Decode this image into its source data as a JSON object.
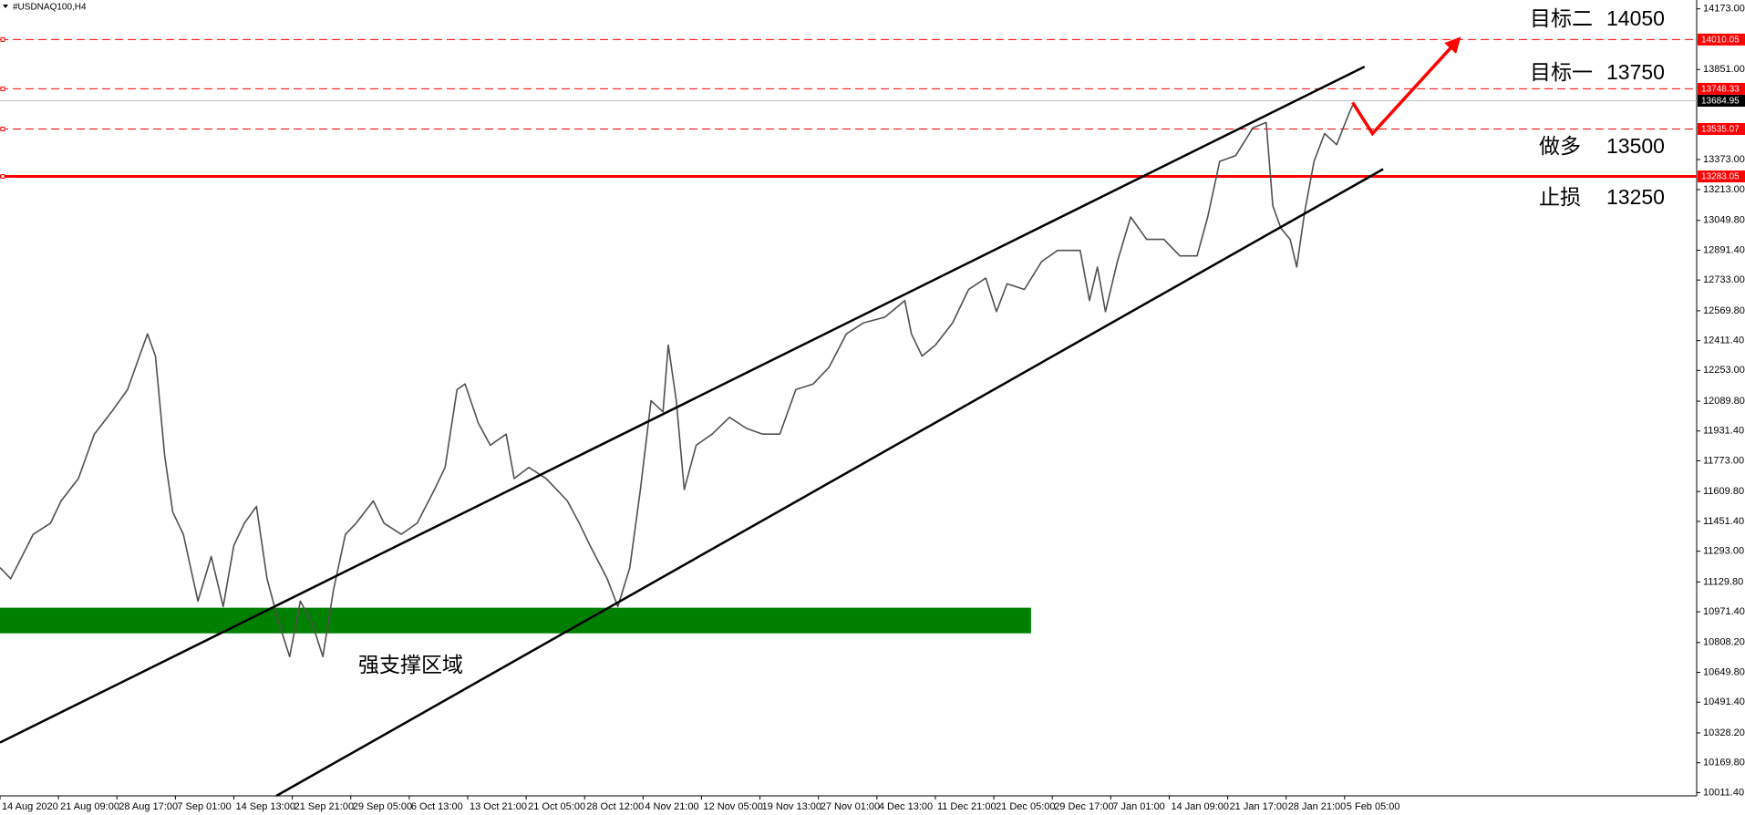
{
  "chart_data": {
    "type": "line",
    "title": "#USDNAQ100,H4",
    "ylim": [
      9994,
      14220
    ],
    "xlim": [
      0,
      1277
    ],
    "yticks": [
      {
        "value": 14173,
        "label": "14173.00"
      },
      {
        "value": 13851,
        "label": "13851.00"
      },
      {
        "value": 13373,
        "label": "13373.00"
      },
      {
        "value": 13213,
        "label": "13213.00"
      },
      {
        "value": 13049.8,
        "label": "13049.80"
      },
      {
        "value": 12891.4,
        "label": "12891.40"
      },
      {
        "value": 12733,
        "label": "12733.00"
      },
      {
        "value": 12569.8,
        "label": "12569.80"
      },
      {
        "value": 12411.4,
        "label": "12411.40"
      },
      {
        "value": 12253,
        "label": "12253.00"
      },
      {
        "value": 12089.8,
        "label": "12089.80"
      },
      {
        "value": 11931.4,
        "label": "11931.40"
      },
      {
        "value": 11773,
        "label": "11773.00"
      },
      {
        "value": 11609.8,
        "label": "11609.80"
      },
      {
        "value": 11451.4,
        "label": "11451.40"
      },
      {
        "value": 11293,
        "label": "11293.00"
      },
      {
        "value": 11129.8,
        "label": "11129.80"
      },
      {
        "value": 10971.4,
        "label": "10971.40"
      },
      {
        "value": 10808.2,
        "label": "10808.20"
      },
      {
        "value": 10649.8,
        "label": "10649.80"
      },
      {
        "value": 10491.4,
        "label": "10491.40"
      },
      {
        "value": 10328.2,
        "label": "10328.20"
      },
      {
        "value": 10169.8,
        "label": "10169.80"
      },
      {
        "value": 10011.4,
        "label": "10011.40"
      }
    ],
    "xticks": [
      {
        "value": 0,
        "label": "14 Aug 2020"
      },
      {
        "value": 44,
        "label": "21 Aug 09:00"
      },
      {
        "value": 88,
        "label": "28 Aug 17:00"
      },
      {
        "value": 132,
        "label": "7 Sep 01:00"
      },
      {
        "value": 176,
        "label": "14 Sep 13:00"
      },
      {
        "value": 220,
        "label": "21 Sep 21:00"
      },
      {
        "value": 264,
        "label": "29 Sep 05:00"
      },
      {
        "value": 308,
        "label": "6 Oct 13:00"
      },
      {
        "value": 352,
        "label": "13 Oct 21:00"
      },
      {
        "value": 396,
        "label": "21 Oct 05:00"
      },
      {
        "value": 440,
        "label": "28 Oct 12:00"
      },
      {
        "value": 484,
        "label": "4 Nov 21:00"
      },
      {
        "value": 528,
        "label": "12 Nov 05:00"
      },
      {
        "value": 572,
        "label": "19 Nov 13:00"
      },
      {
        "value": 616,
        "label": "27 Nov 01:00"
      },
      {
        "value": 660,
        "label": "4 Dec 13:00"
      },
      {
        "value": 704,
        "label": "11 Dec 21:00"
      },
      {
        "value": 748,
        "label": "21 Dec 05:00"
      },
      {
        "value": 792,
        "label": "29 Dec 17:00"
      },
      {
        "value": 836,
        "label": "7 Jan 01:00"
      },
      {
        "value": 880,
        "label": "14 Jan 09:00"
      },
      {
        "value": 924,
        "label": "21 Jan 17:00"
      },
      {
        "value": 968,
        "label": "28 Jan 21:00"
      },
      {
        "value": 1012,
        "label": "5 Feb 05:00"
      }
    ],
    "series": [
      {
        "color": "#505050",
        "x": [
          0,
          8,
          25,
          38,
          46,
          59,
          71,
          84,
          96,
          105,
          111,
          117,
          124,
          130,
          138,
          149,
          159,
          168,
          176,
          184,
          193,
          201,
          210,
          218,
          226,
          235,
          243,
          251,
          260,
          268,
          281,
          289,
          302,
          314,
          327,
          335,
          344,
          350,
          360,
          369,
          381,
          387,
          398,
          411,
          419,
          427,
          436,
          444,
          457,
          465,
          474,
          482,
          490,
          499,
          503,
          509,
          515,
          524,
          536,
          549,
          562,
          574,
          587,
          599,
          612,
          624,
          637,
          650,
          666,
          681,
          686,
          694,
          704,
          717,
          729,
          742,
          750,
          758,
          771,
          784,
          796,
          813,
          820,
          826,
          832,
          841,
          851,
          863,
          876,
          888,
          901,
          909,
          918,
          930,
          943,
          953,
          958,
          964,
          971,
          976,
          982,
          989,
          997,
          1006,
          1016,
          1018
        ],
        "values": [
          11206,
          11147,
          11383,
          11442,
          11560,
          11679,
          11915,
          12033,
          12151,
          12329,
          12447,
          12329,
          11797,
          11501,
          11383,
          11028,
          11265,
          10999,
          11324,
          11442,
          11531,
          11147,
          10910,
          10733,
          11028,
          10910,
          10733,
          11088,
          11383,
          11442,
          11560,
          11442,
          11383,
          11442,
          11620,
          11738,
          12151,
          12181,
          11974,
          11856,
          11915,
          11679,
          11738,
          11679,
          11620,
          11560,
          11442,
          11324,
          11147,
          10999,
          11206,
          11620,
          12092,
          12033,
          12388,
          12092,
          11620,
          11856,
          11915,
          12004,
          11945,
          11915,
          11915,
          12151,
          12181,
          12270,
          12447,
          12506,
          12536,
          12624,
          12447,
          12329,
          12388,
          12506,
          12683,
          12743,
          12565,
          12713,
          12683,
          12831,
          12890,
          12890,
          12624,
          12802,
          12565,
          12831,
          13068,
          12949,
          12949,
          12861,
          12861,
          13068,
          13363,
          13393,
          13541,
          13570,
          13127,
          13009,
          12949,
          12802,
          13097,
          13363,
          13511,
          13452,
          13629,
          13659
        ]
      }
    ],
    "levels": [
      {
        "value": 14010.05,
        "color": "#ff0000",
        "style": "dashed"
      },
      {
        "value": 13748.33,
        "color": "#ff0000",
        "style": "dashed"
      },
      {
        "value": 13684.95,
        "color": "#c0c0c0",
        "style": "solid"
      },
      {
        "value": 13535.07,
        "color": "#ff0000",
        "style": "dashed"
      },
      {
        "value": 13283.05,
        "color": "#ff0000",
        "style": "thick"
      }
    ],
    "trend_lines": [
      {
        "color": "#000000",
        "x": [
          0,
          1027
        ],
        "values": [
          10277,
          13866
        ]
      },
      {
        "color": "#000000",
        "x": [
          208,
          1041
        ],
        "values": [
          9994,
          13322
        ]
      },
      {
        "color": "#ff0000",
        "x": [
          1018,
          1033,
          1098
        ],
        "values": [
          13676,
          13511,
          14013
        ],
        "arrow": true
      }
    ],
    "zones": [
      {
        "label": "强支撑区域",
        "color": "#008000",
        "x": [
          0,
          776
        ],
        "values": [
          10857,
          10993
        ]
      }
    ],
    "annotations": [
      {
        "text": "目标二",
        "value": 14050
      },
      {
        "text": "目标一",
        "value": 13750
      },
      {
        "text": "做多",
        "value": 13500
      },
      {
        "text": "止损",
        "value": 13250
      }
    ]
  }
}
